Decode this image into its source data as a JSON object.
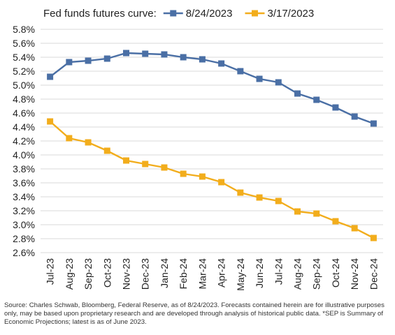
{
  "chart_data": {
    "type": "line",
    "title": "Fed funds futures curve:",
    "categories": [
      "Jul-23",
      "Aug-23",
      "Sep-23",
      "Oct-23",
      "Nov-23",
      "Dec-23",
      "Jan-24",
      "Feb-24",
      "Mar-24",
      "Apr-24",
      "May-24",
      "Jun-24",
      "Jul-24",
      "Aug-24",
      "Sep-24",
      "Oct-24",
      "Nov-24",
      "Dec-24"
    ],
    "series": [
      {
        "name": "8/24/2023",
        "color": "#4a6fa5",
        "marker": "square",
        "values": [
          5.12,
          5.33,
          5.35,
          5.38,
          5.46,
          5.45,
          5.44,
          5.4,
          5.37,
          5.31,
          5.2,
          5.09,
          5.04,
          4.88,
          4.79,
          4.68,
          4.55,
          4.45
        ]
      },
      {
        "name": "3/17/2023",
        "color": "#f2ad1c",
        "marker": "square",
        "values": [
          4.48,
          4.24,
          4.18,
          4.06,
          3.92,
          3.87,
          3.82,
          3.73,
          3.69,
          3.61,
          3.46,
          3.39,
          3.34,
          3.19,
          3.16,
          3.05,
          2.95,
          2.81
        ]
      }
    ],
    "ylim": [
      2.6,
      5.8
    ],
    "yticks": [
      "2.6%",
      "2.8%",
      "3.0%",
      "3.2%",
      "3.4%",
      "3.6%",
      "3.8%",
      "4.0%",
      "4.2%",
      "4.4%",
      "4.6%",
      "4.8%",
      "5.0%",
      "5.2%",
      "5.4%",
      "5.6%",
      "5.8%"
    ],
    "grid": true,
    "legend_position": "top"
  },
  "source_note": "Source: Charles Schwab, Bloomberg, Federal Reserve, as of 8/24/2023. Forecasts contained herein are for illustrative purposes only, may be based upon proprietary research and are developed through analysis of historical public data. *SEP is Summary of Economic Projections; latest is as of June 2023."
}
